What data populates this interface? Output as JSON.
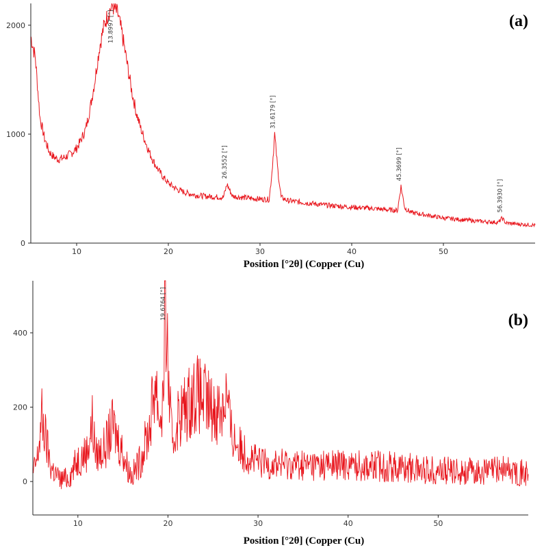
{
  "chart_data": [
    {
      "type": "line",
      "panel_label": "(a)",
      "xlabel": "Position [°2θ] (Copper (Cu)",
      "ylabel": "",
      "xlim": [
        5,
        60
      ],
      "ylim": [
        0,
        2200
      ],
      "xticks": [
        10,
        20,
        30,
        40,
        50
      ],
      "yticks": [
        0,
        1000,
        2000
      ],
      "grid": false,
      "series": [
        {
          "color": "#e8141b",
          "x": [
            5,
            5.5,
            6,
            6.5,
            7,
            7.5,
            8,
            8.5,
            9,
            9.5,
            10,
            10.5,
            11,
            11.5,
            12,
            12.5,
            13,
            13.5,
            13.9,
            14.5,
            15,
            15.5,
            16,
            16.5,
            17,
            17.5,
            18,
            18.5,
            19,
            19.5,
            20,
            21,
            22,
            23,
            24,
            25,
            26,
            26.4,
            27,
            28,
            29,
            30,
            31,
            31.3,
            31.6,
            31.9,
            32.3,
            33,
            35,
            37,
            40,
            42,
            44,
            45,
            45.37,
            45.8,
            46.5,
            48,
            50,
            52,
            54,
            56,
            56.4,
            56.8,
            58,
            60
          ],
          "y": [
            1900,
            1700,
            1150,
            960,
            840,
            790,
            770,
            780,
            800,
            830,
            870,
            950,
            1050,
            1250,
            1500,
            1800,
            2000,
            2120,
            2180,
            2100,
            1900,
            1650,
            1400,
            1200,
            1050,
            930,
            820,
            730,
            660,
            600,
            550,
            490,
            460,
            440,
            430,
            425,
            420,
            540,
            430,
            420,
            410,
            405,
            400,
            650,
            1000,
            700,
            420,
            390,
            370,
            350,
            330,
            320,
            305,
            300,
            520,
            320,
            280,
            260,
            230,
            215,
            200,
            190,
            230,
            185,
            175,
            165
          ]
        }
      ],
      "peak_labels": [
        {
          "x": 13.8997,
          "text": "13.8997 [°]"
        },
        {
          "x": 26.3552,
          "text": "26.3552 [°]"
        },
        {
          "x": 31.6179,
          "text": "31.6179 [°]"
        },
        {
          "x": 45.3699,
          "text": "45.3699 [°]"
        },
        {
          "x": 56.393,
          "text": "56.3930 [°]"
        }
      ]
    },
    {
      "type": "line",
      "panel_label": "(b)",
      "xlabel": "Position [°2θ] (Copper (Cu)",
      "ylabel": "",
      "xlim": [
        5,
        60
      ],
      "ylim": [
        -90,
        540
      ],
      "xticks": [
        10,
        20,
        30,
        40,
        50
      ],
      "yticks": [
        0,
        200,
        400
      ],
      "grid": false,
      "series": [
        {
          "color": "#e8141b",
          "x": [
            5,
            5.5,
            6,
            7,
            8,
            9,
            10,
            11,
            11.6,
            12,
            13,
            13.9,
            14.5,
            15,
            15.5,
            16,
            17,
            18,
            18.6,
            19.1,
            19.5,
            19.68,
            20,
            20.5,
            21,
            22,
            23,
            24,
            25,
            26,
            26.5,
            27,
            28,
            30,
            35,
            40,
            45,
            50,
            55,
            57,
            60
          ],
          "y": [
            20,
            60,
            170,
            40,
            5,
            10,
            60,
            80,
            160,
            70,
            90,
            150,
            110,
            80,
            40,
            15,
            60,
            150,
            280,
            160,
            230,
            540,
            300,
            80,
            170,
            200,
            240,
            220,
            190,
            200,
            240,
            130,
            90,
            50,
            45,
            45,
            40,
            30,
            25,
            35,
            20
          ]
        }
      ],
      "peak_labels": [
        {
          "x": 19.6764,
          "text": "19.6764 [°]"
        }
      ]
    }
  ]
}
